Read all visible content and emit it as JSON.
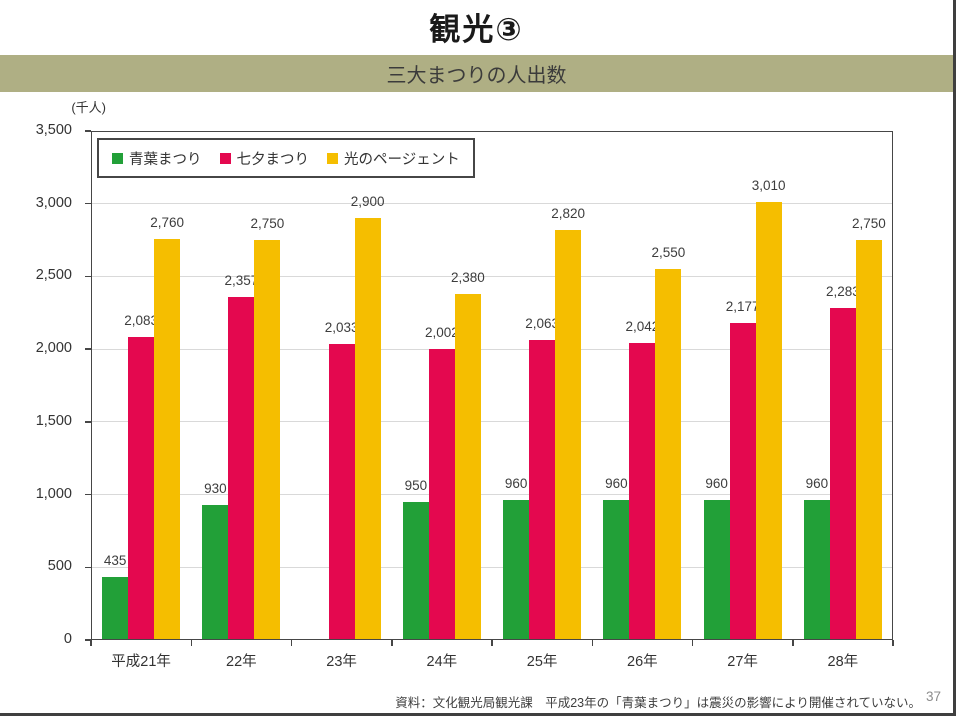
{
  "page": {
    "title": "観光③",
    "subtitle": "三大まつりの人出数",
    "banner_color": "#afaf84",
    "footnote": "資料：文化観光局観光課　平成23年の「青葉まつり」は震災の影響により開催されていない。",
    "page_number": "37"
  },
  "chart_data": {
    "type": "bar",
    "title": "三大まつりの人出数",
    "unit_label": "(千人)",
    "categories": [
      "平成21年",
      "22年",
      "23年",
      "24年",
      "25年",
      "26年",
      "27年",
      "28年"
    ],
    "series": [
      {
        "name": "青葉まつり",
        "color": "#22a038",
        "values": [
          435,
          930,
          null,
          950,
          960,
          960,
          960,
          960
        ]
      },
      {
        "name": "七夕まつり",
        "color": "#e4084f",
        "values": [
          2083,
          2357,
          2033,
          2002,
          2063,
          2042,
          2177,
          2283
        ]
      },
      {
        "name": "光のページェント",
        "color": "#f5be00",
        "values": [
          2760,
          2750,
          2900,
          2380,
          2820,
          2550,
          3010,
          2750
        ]
      }
    ],
    "ylim": [
      0,
      3500
    ],
    "ytick_step": 500,
    "grid": true,
    "legend_position": "top-left",
    "data_labels": true,
    "note": "平成23年の青葉まつりは震災の影響により開催されていない（値なし）",
    "colors": {
      "axis": "#464646",
      "grid": "#d9d9d9",
      "label_text": "#3d3d3d"
    }
  }
}
